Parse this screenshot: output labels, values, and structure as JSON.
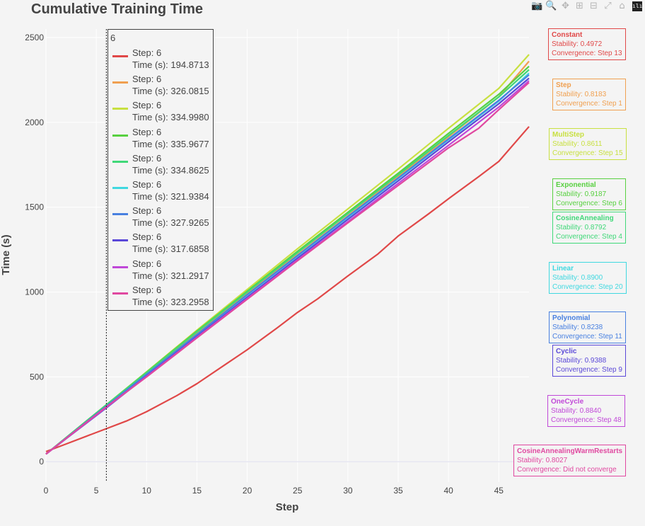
{
  "chart_data": {
    "type": "line",
    "title": "Cumulative Training Time",
    "xlabel": "Step",
    "ylabel": "Time (s)",
    "xlim": [
      0,
      48
    ],
    "ylim": [
      -120,
      2550
    ],
    "xticks": [
      0,
      5,
      10,
      15,
      20,
      25,
      30,
      35,
      40,
      45
    ],
    "yticks": [
      0,
      500,
      1000,
      1500,
      2000,
      2500
    ],
    "grid": true,
    "hover_step": 6,
    "series": [
      {
        "name": "Constant",
        "color": "#e04848",
        "points": [
          [
            0,
            60
          ],
          [
            2,
            105
          ],
          [
            4,
            150
          ],
          [
            6,
            194.8713
          ],
          [
            8,
            240
          ],
          [
            10,
            295
          ],
          [
            13,
            390
          ],
          [
            15,
            460
          ],
          [
            18,
            580
          ],
          [
            20,
            660
          ],
          [
            23,
            790
          ],
          [
            25,
            880
          ],
          [
            27,
            960
          ],
          [
            30,
            1095
          ],
          [
            33,
            1225
          ],
          [
            35,
            1330
          ],
          [
            38,
            1460
          ],
          [
            40,
            1550
          ],
          [
            43,
            1680
          ],
          [
            45,
            1770
          ],
          [
            48,
            1975
          ]
        ]
      },
      {
        "name": "Step",
        "color": "#f0a050",
        "points": [
          [
            0,
            45
          ],
          [
            6,
            326.0815
          ],
          [
            10,
            518
          ],
          [
            15,
            755
          ],
          [
            20,
            995
          ],
          [
            25,
            1220
          ],
          [
            30,
            1450
          ],
          [
            35,
            1680
          ],
          [
            40,
            1915
          ],
          [
            45,
            2150
          ],
          [
            48,
            2360
          ]
        ]
      },
      {
        "name": "MultiStep",
        "color": "#c8e040",
        "points": [
          [
            0,
            45
          ],
          [
            6,
            334.998
          ],
          [
            10,
            530
          ],
          [
            15,
            775
          ],
          [
            20,
            1015
          ],
          [
            25,
            1255
          ],
          [
            30,
            1490
          ],
          [
            35,
            1725
          ],
          [
            40,
            1965
          ],
          [
            45,
            2200
          ],
          [
            48,
            2400
          ]
        ]
      },
      {
        "name": "Exponential",
        "color": "#58d040",
        "points": [
          [
            0,
            45
          ],
          [
            6,
            335.9677
          ],
          [
            10,
            528
          ],
          [
            15,
            770
          ],
          [
            20,
            1005
          ],
          [
            25,
            1240
          ],
          [
            30,
            1470
          ],
          [
            35,
            1700
          ],
          [
            40,
            1935
          ],
          [
            45,
            2165
          ],
          [
            48,
            2330
          ]
        ]
      },
      {
        "name": "CosineAnnealing",
        "color": "#40d878",
        "points": [
          [
            0,
            45
          ],
          [
            6,
            334.8625
          ],
          [
            10,
            525
          ],
          [
            15,
            765
          ],
          [
            20,
            1000
          ],
          [
            25,
            1232
          ],
          [
            30,
            1462
          ],
          [
            35,
            1690
          ],
          [
            40,
            1922
          ],
          [
            45,
            2150
          ],
          [
            48,
            2310
          ]
        ]
      },
      {
        "name": "Linear",
        "color": "#40d8e0",
        "points": [
          [
            0,
            45
          ],
          [
            6,
            321.9384
          ],
          [
            10,
            512
          ],
          [
            15,
            748
          ],
          [
            20,
            982
          ],
          [
            25,
            1212
          ],
          [
            30,
            1440
          ],
          [
            35,
            1668
          ],
          [
            40,
            1898
          ],
          [
            45,
            2125
          ],
          [
            48,
            2290
          ]
        ]
      },
      {
        "name": "Polynomial",
        "color": "#4880e0",
        "points": [
          [
            0,
            45
          ],
          [
            6,
            327.9265
          ],
          [
            10,
            515
          ],
          [
            15,
            750
          ],
          [
            20,
            985
          ],
          [
            25,
            1215
          ],
          [
            30,
            1445
          ],
          [
            35,
            1672
          ],
          [
            40,
            1902
          ],
          [
            45,
            2130
          ],
          [
            48,
            2280
          ]
        ]
      },
      {
        "name": "Cyclic",
        "color": "#5a48d8",
        "points": [
          [
            0,
            45
          ],
          [
            6,
            317.6858
          ],
          [
            10,
            505
          ],
          [
            15,
            738
          ],
          [
            20,
            970
          ],
          [
            25,
            1200
          ],
          [
            30,
            1428
          ],
          [
            35,
            1655
          ],
          [
            40,
            1885
          ],
          [
            45,
            2110
          ],
          [
            48,
            2260
          ]
        ]
      },
      {
        "name": "OneCycle",
        "color": "#c048d8",
        "points": [
          [
            0,
            45
          ],
          [
            6,
            321.2917
          ],
          [
            10,
            502
          ],
          [
            15,
            733
          ],
          [
            20,
            962
          ],
          [
            25,
            1190
          ],
          [
            30,
            1415
          ],
          [
            35,
            1640
          ],
          [
            40,
            1865
          ],
          [
            45,
            2090
          ],
          [
            48,
            2245
          ]
        ]
      },
      {
        "name": "CosineAnnealingWarmRestarts",
        "color": "#e048a0",
        "points": [
          [
            0,
            45
          ],
          [
            6,
            323.2958
          ],
          [
            10,
            500
          ],
          [
            15,
            730
          ],
          [
            20,
            958
          ],
          [
            25,
            1185
          ],
          [
            30,
            1408
          ],
          [
            35,
            1628
          ],
          [
            40,
            1850
          ],
          [
            43,
            1965
          ],
          [
            45,
            2075
          ],
          [
            48,
            2235
          ]
        ]
      }
    ]
  },
  "hover": {
    "header": "6",
    "items": [
      {
        "step": "Step: 6",
        "time": "Time (s): 194.8713",
        "color": "#e04848"
      },
      {
        "step": "Step: 6",
        "time": "Time (s): 326.0815",
        "color": "#f0a050"
      },
      {
        "step": "Step: 6",
        "time": "Time (s): 334.9980",
        "color": "#c8e040"
      },
      {
        "step": "Step: 6",
        "time": "Time (s): 335.9677",
        "color": "#58d040"
      },
      {
        "step": "Step: 6",
        "time": "Time (s): 334.8625",
        "color": "#40d878"
      },
      {
        "step": "Step: 6",
        "time": "Time (s): 321.9384",
        "color": "#40d8e0"
      },
      {
        "step": "Step: 6",
        "time": "Time (s): 327.9265",
        "color": "#4880e0"
      },
      {
        "step": "Step: 6",
        "time": "Time (s): 317.6858",
        "color": "#5a48d8"
      },
      {
        "step": "Step: 6",
        "time": "Time (s): 321.2917",
        "color": "#c048d8"
      },
      {
        "step": "Step: 6",
        "time": "Time (s): 323.2958",
        "color": "#e048a0"
      }
    ]
  },
  "annotations": [
    {
      "name": "Constant",
      "stability": "Stability: 0.4972",
      "convergence": "Convergence: Step 13",
      "color": "#e04848"
    },
    {
      "name": "Step",
      "stability": "Stability: 0.8183",
      "convergence": "Convergence: Step 1",
      "color": "#f0a050"
    },
    {
      "name": "MultiStep",
      "stability": "Stability: 0.8611",
      "convergence": "Convergence: Step 15",
      "color": "#c8e040"
    },
    {
      "name": "Exponential",
      "stability": "Stability: 0.9187",
      "convergence": "Convergence: Step 6",
      "color": "#58d040"
    },
    {
      "name": "CosineAnnealing",
      "stability": "Stability: 0.8792",
      "convergence": "Convergence: Step 4",
      "color": "#40d878"
    },
    {
      "name": "Linear",
      "stability": "Stability: 0.8900",
      "convergence": "Convergence: Step 20",
      "color": "#40d8e0"
    },
    {
      "name": "Polynomial",
      "stability": "Stability: 0.8238",
      "convergence": "Convergence: Step 11",
      "color": "#4880e0"
    },
    {
      "name": "Cyclic",
      "stability": "Stability: 0.9388",
      "convergence": "Convergence: Step 9",
      "color": "#5a48d8"
    },
    {
      "name": "OneCycle",
      "stability": "Stability: 0.8840",
      "convergence": "Convergence: Step 48",
      "color": "#c048d8"
    },
    {
      "name": "CosineAnnealingWarmRestarts",
      "stability": "Stability: 0.8027",
      "convergence": "Convergence: Did not converge",
      "color": "#e048a0"
    }
  ],
  "modebar": {
    "icons": [
      "camera-icon",
      "zoom-icon",
      "pan-icon",
      "zoom-in-icon",
      "zoom-out-icon",
      "autoscale-icon",
      "reset-axes-icon",
      "plotly-logo-icon"
    ]
  }
}
